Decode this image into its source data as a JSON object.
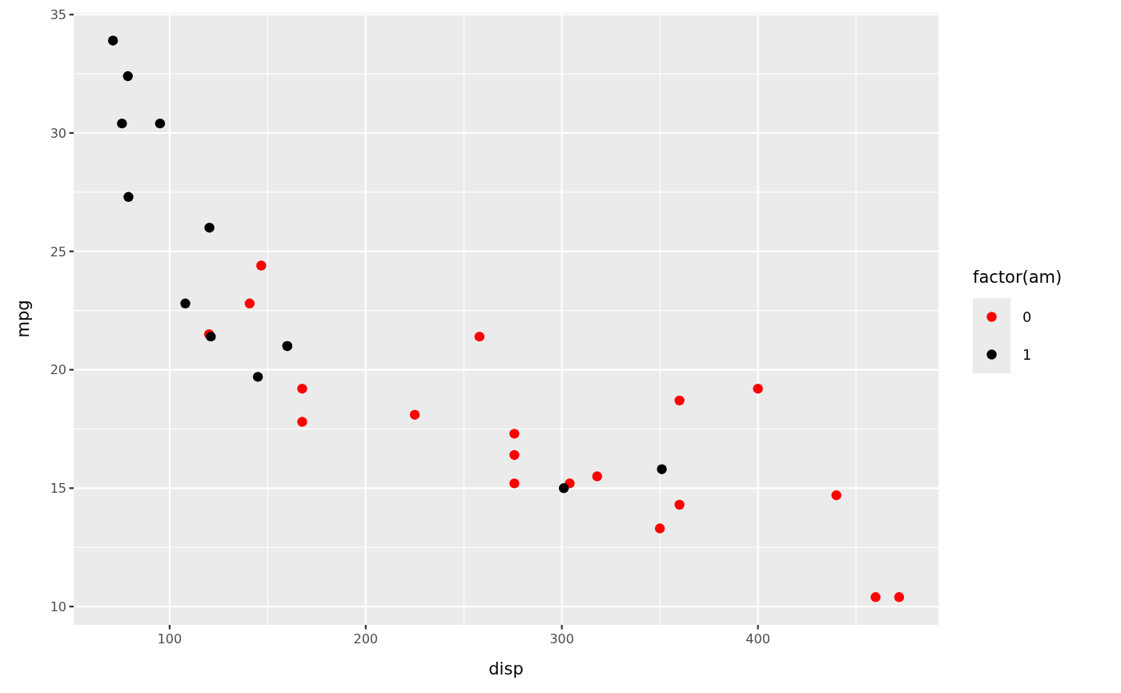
{
  "chart_data": {
    "type": "scatter",
    "xlabel": "disp",
    "ylabel": "mpg",
    "legend_title": "factor(am)",
    "legend": "right",
    "grid": true,
    "marker": "circle",
    "xlim": [
      51.055,
      492.045
    ],
    "ylim": [
      9.225,
      35.075
    ],
    "xticks": [
      100,
      200,
      300,
      400
    ],
    "yticks": [
      10,
      15,
      20,
      25,
      30,
      35
    ],
    "series": [
      {
        "name": "0",
        "color": "#ff0000",
        "x": [
          258,
          360,
          225,
          360,
          146.7,
          140.8,
          167.6,
          167.6,
          275.8,
          275.8,
          275.8,
          472,
          460,
          440,
          120.1,
          318,
          304,
          350,
          400
        ],
        "values": [
          21.4,
          18.7,
          18.1,
          14.3,
          24.4,
          22.8,
          19.2,
          17.8,
          16.4,
          17.3,
          15.2,
          10.4,
          10.4,
          14.7,
          21.5,
          15.5,
          15.2,
          13.3,
          19.2
        ]
      },
      {
        "name": "1",
        "color": "#000000",
        "x": [
          160,
          160,
          108,
          78.7,
          75.7,
          71.1,
          79,
          120.3,
          95.1,
          351,
          145,
          301,
          121
        ],
        "values": [
          21,
          21,
          22.8,
          32.4,
          30.4,
          33.9,
          27.3,
          26,
          30.4,
          15.8,
          19.7,
          15,
          21.4
        ]
      }
    ]
  }
}
